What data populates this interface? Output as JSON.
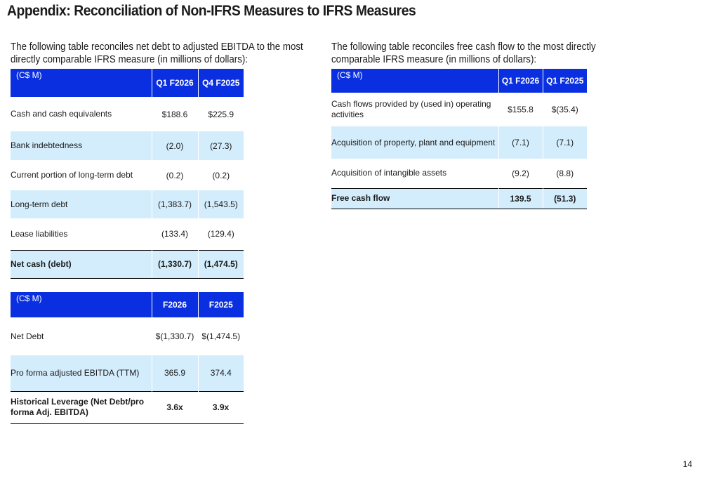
{
  "title": "Appendix: Reconciliation of Non-IFRS Measures to IFRS Measures",
  "intro_left": "The following table reconciles net debt to adjusted EBITDA to the most directly comparable IFRS measure (in millions of dollars):",
  "intro_right": "The following table reconciles free cash flow to the most directly comparable IFRS measure (in millions of dollars):",
  "net_debt_table": {
    "unit": "(C$ M)",
    "columns": [
      "Q1 F2026",
      "Q4 F2025"
    ],
    "rows": [
      {
        "label": "Cash and cash equivalents",
        "values": [
          "$188.6",
          "$225.9"
        ]
      },
      {
        "label": "Bank indebtedness",
        "values": [
          "(2.0)",
          "(27.3)"
        ]
      },
      {
        "label": "Current portion of long-term debt",
        "values": [
          "(0.2)",
          "(0.2)"
        ]
      },
      {
        "label": "Long-term debt",
        "values": [
          "(1,383.7)",
          "(1,543.5)"
        ]
      },
      {
        "label": "Lease liabilities",
        "values": [
          "(133.4)",
          "(129.4)"
        ]
      },
      {
        "label": "Net cash (debt)",
        "values": [
          "(1,330.7)",
          "(1,474.5)"
        ]
      }
    ]
  },
  "leverage_table": {
    "unit": "(C$ M)",
    "columns": [
      "F2026",
      "F2025"
    ],
    "rows": [
      {
        "label": "Net Debt",
        "values": [
          "$(1,330.7)",
          "$(1,474.5)"
        ]
      },
      {
        "label": "Pro forma adjusted EBITDA (TTM)",
        "values": [
          "365.9",
          "374.4"
        ]
      },
      {
        "label": "Historical Leverage (Net Debt/pro forma Adj. EBITDA)",
        "values": [
          "3.6x",
          "3.9x"
        ]
      }
    ]
  },
  "fcf_table": {
    "unit": "(C$ M)",
    "columns": [
      "Q1 F2026",
      "Q1 F2025"
    ],
    "rows": [
      {
        "label": "Cash flows provided by (used in) operating activities",
        "values": [
          "$155.8",
          "$(35.4)"
        ]
      },
      {
        "label": "Acquisition of property, plant and equipment",
        "values": [
          "(7.1)",
          "(7.1)"
        ]
      },
      {
        "label": "Acquisition of intangible assets",
        "values": [
          "(9.2)",
          "(8.8)"
        ]
      },
      {
        "label": "Free cash flow",
        "values": [
          "139.5",
          "(51.3)"
        ]
      }
    ]
  },
  "page_number": "14",
  "colors": {
    "header_bg": "#0a2fe0",
    "shaded_row": "#d4edfc",
    "header_text": "#ffffff"
  }
}
